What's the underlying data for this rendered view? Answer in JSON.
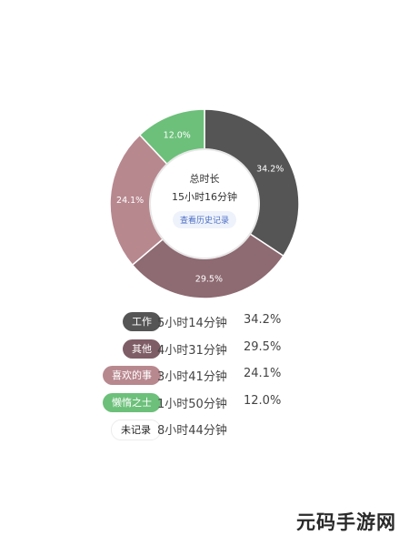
{
  "summary": {
    "title": "总时长",
    "total": "15小时16分钟",
    "history_button": "查看历史记录"
  },
  "chart_data": {
    "type": "pie",
    "slices": [
      {
        "label": "工作",
        "value": 34.2,
        "display": "34.2%",
        "color": "#555555"
      },
      {
        "label": "其他",
        "value": 29.5,
        "display": "29.5%",
        "color": "#8e6a72"
      },
      {
        "label": "喜欢的事",
        "value": 24.1,
        "display": "24.1%",
        "color": "#b8888f"
      },
      {
        "label": "懒惰之士",
        "value": 12.0,
        "display": "12.0%",
        "color": "#6cc07a"
      }
    ]
  },
  "legend": [
    {
      "label": "工作",
      "duration": "5小时14分钟",
      "percent": "34.2%",
      "color": "#555555"
    },
    {
      "label": "其他",
      "duration": "4小时31分钟",
      "percent": "29.5%",
      "color": "#7e5d66"
    },
    {
      "label": "喜欢的事",
      "duration": "3小时41分钟",
      "percent": "24.1%",
      "color": "#b8888f"
    },
    {
      "label": "懒惰之士",
      "duration": "1小时50分钟",
      "percent": "12.0%",
      "color": "#6cc07a"
    },
    {
      "label": "未记录",
      "duration": "8小时44分钟",
      "percent": "",
      "color": "#ffffff"
    }
  ],
  "watermark": "元码手游网"
}
